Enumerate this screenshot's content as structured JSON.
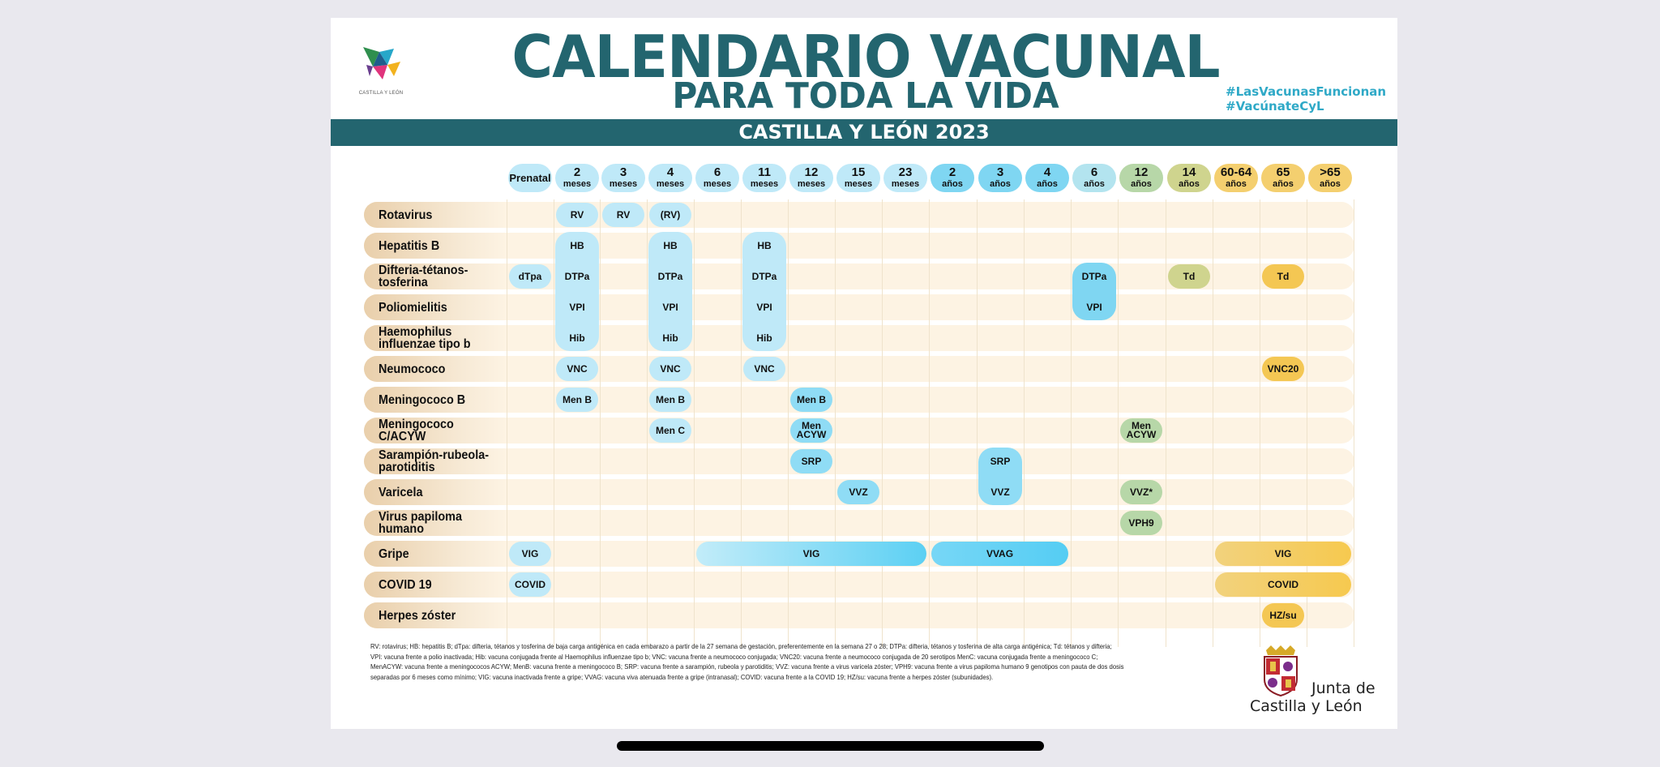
{
  "header": {
    "logo_text": "CASTILLA Y LEÓN",
    "title": "CALENDARIO VACUNAL",
    "subtitle": "PARA TODA LA VIDA",
    "hashtag1": "#LasVacunasFuncionan",
    "hashtag2": "#VacúnateCyL",
    "banner": "CASTILLA Y LEÓN 2023"
  },
  "ages": [
    {
      "n": "Prenatal",
      "u": ""
    },
    {
      "n": "2",
      "u": "meses"
    },
    {
      "n": "3",
      "u": "meses"
    },
    {
      "n": "4",
      "u": "meses"
    },
    {
      "n": "6",
      "u": "meses"
    },
    {
      "n": "11",
      "u": "meses"
    },
    {
      "n": "12",
      "u": "meses"
    },
    {
      "n": "15",
      "u": "meses"
    },
    {
      "n": "23",
      "u": "meses"
    },
    {
      "n": "2",
      "u": "años"
    },
    {
      "n": "3",
      "u": "años"
    },
    {
      "n": "4",
      "u": "años"
    },
    {
      "n": "6",
      "u": "años"
    },
    {
      "n": "12",
      "u": "años"
    },
    {
      "n": "14",
      "u": "años"
    },
    {
      "n": "60-64",
      "u": "años"
    },
    {
      "n": "65",
      "u": "años"
    },
    {
      "n": ">65",
      "u": "años"
    }
  ],
  "rows": [
    "Rotavirus",
    "Hepatitis B",
    "Difteria-tétanos-tosferina",
    "Poliomielitis",
    "Haemophilus influenzae tipo b",
    "Neumococo",
    "Meningococo B",
    "Meningococo C/ACYW",
    "Sarampión-rubeola-parotiditis",
    "Varicela",
    "Virus papiloma humano",
    "Gripe",
    "COVID 19",
    "Herpes zóster"
  ],
  "vaccines": {
    "rv1": "RV",
    "rv2": "RV",
    "rv3": "(RV)",
    "hb": "HB",
    "dtpa_prenatal": "dTpa",
    "dtpa": "DTPa",
    "vpi": "VPI",
    "hib": "Hib",
    "dtpa6": "DTPa",
    "vpi6": "VPI",
    "td14": "Td",
    "td65": "Td",
    "vnc": "VNC",
    "vnc20": "VNC20",
    "menb": "Men B",
    "menc": "Men C",
    "menacyw": "Men ACYW",
    "srp": "SRP",
    "vvz": "VVZ",
    "vvz12": "VVZ*",
    "vph9": "VPH9",
    "vig": "VIG",
    "vvag": "VVAG",
    "covid": "COVID",
    "hzsu": "HZ/su"
  },
  "notes": [
    "RV: rotavirus; HB: hepatitis B; dTpa: difteria, tétanos y tosferina de baja carga antigénica en cada embarazo a partir de la 27 semana de gestación, preferentemente en la semana 27 o 28; DTPa: difteria, tétanos y tosferina de alta carga antigénica; Td: tétanos y difteria;",
    "VPI: vacuna frente a polio inactivada; Hib: vacuna conjugada frente al Haemophilus influenzae tipo b; VNC: vacuna frente a neumococo conjugada; VNC20: vacuna frente a neumococo conjugada de 20 serotipos MenC: vacuna conjugada frente a meningococo C;",
    "MenACYW: vacuna frente a meningococos ACYW; MenB: vacuna frente a meningococo B; SRP: vacuna frente a sarampión, rubeola y parotiditis; VVZ: vacuna frente a virus varicela zóster; VPH9: vacuna frente a virus papiloma humano 9 genotipos con pauta de dos dosis",
    "separadas por 6 meses como mínimo; VIG: vacuna inactivada frente a gripe; VVAG: vacuna viva atenuada frente a gripe (intranasal); COVID: vacuna frente a la COVID 19; HZ/su: vacuna frente a herpes zóster (subunidades)."
  ],
  "footer_logo": {
    "line1": "Junta de",
    "line2": "Castilla y León"
  },
  "colors": {
    "teal": "#23656f",
    "light_blue": "#bfe9f8",
    "bright_blue": "#5cd0f3",
    "green": "#b7d7a8",
    "olive": "#cfd48e",
    "yellow": "#f4c753",
    "row_bg": "#fdf3e3"
  }
}
